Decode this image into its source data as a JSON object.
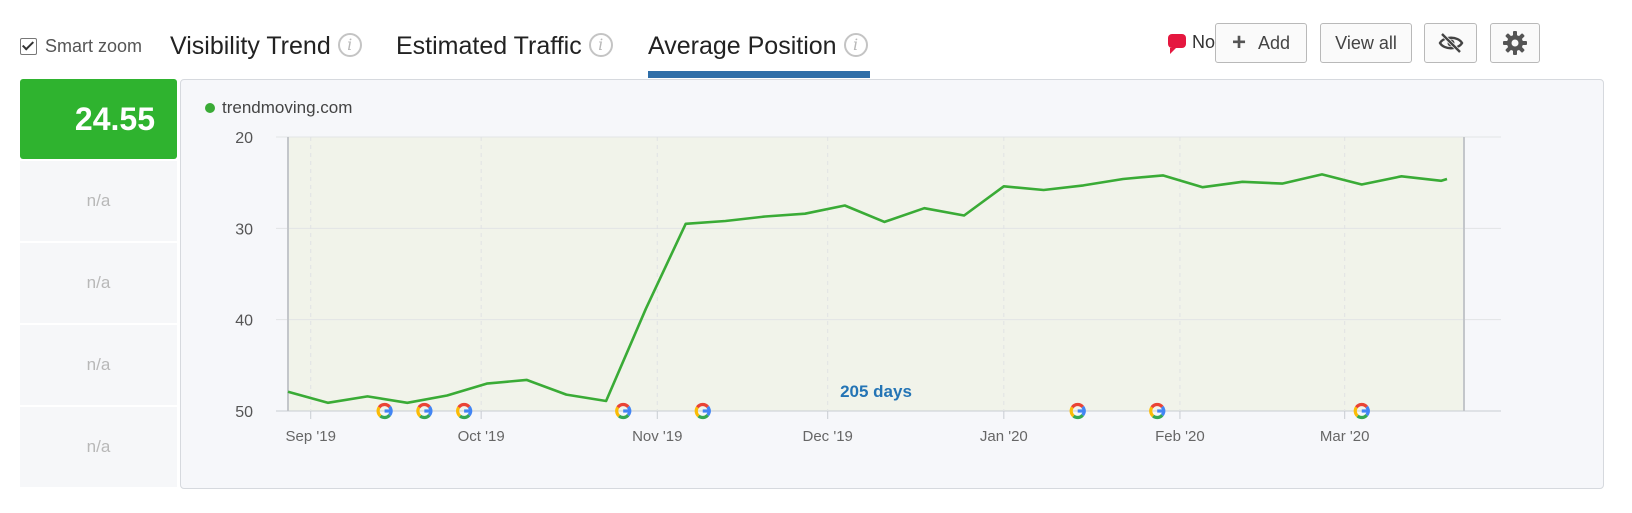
{
  "controls": {
    "smart_zoom_label": "Smart zoom",
    "smart_zoom_checked": true
  },
  "tabs": [
    {
      "label": "Visibility Trend",
      "active": false
    },
    {
      "label": "Estimated Traffic",
      "active": false
    },
    {
      "label": "Average Position",
      "active": true
    }
  ],
  "notes": {
    "label": "Notes:",
    "add_label": "Add",
    "view_all_label": "View all"
  },
  "icons": {
    "info": "info-icon",
    "note": "speech-bubble-icon",
    "plus": "plus-icon",
    "hide": "eye-slash-icon",
    "settings": "gear-icon",
    "update": "google-g-icon"
  },
  "metrics": {
    "value": "24.55",
    "na": [
      "n/a",
      "n/a",
      "n/a",
      "n/a"
    ]
  },
  "colors": {
    "accent": "#2f6ea8",
    "line": "#3aab36",
    "score_bg": "#2fb32f",
    "period_label": "#2474b5"
  },
  "chart_data": {
    "type": "line",
    "legend_entry": "trendmoving.com",
    "y_reversed": true,
    "ylim": [
      20,
      50
    ],
    "yticks": [
      20,
      30,
      40,
      50
    ],
    "xlim": [
      "2019-08-28",
      "2020-03-22"
    ],
    "xticks": [
      {
        "date": "2019-09-01",
        "label": "Sep '19"
      },
      {
        "date": "2019-10-01",
        "label": "Oct '19"
      },
      {
        "date": "2019-11-01",
        "label": "Nov '19"
      },
      {
        "date": "2019-12-01",
        "label": "Dec '19"
      },
      {
        "date": "2020-01-01",
        "label": "Jan '20"
      },
      {
        "date": "2020-02-01",
        "label": "Feb '20"
      },
      {
        "date": "2020-03-01",
        "label": "Mar '20"
      }
    ],
    "series": [
      {
        "name": "trendmoving.com",
        "points": [
          [
            "2019-08-28",
            47.9
          ],
          [
            "2019-09-04",
            49.1
          ],
          [
            "2019-09-11",
            48.4
          ],
          [
            "2019-09-18",
            49.1
          ],
          [
            "2019-09-25",
            48.3
          ],
          [
            "2019-10-02",
            47.0
          ],
          [
            "2019-10-09",
            46.6
          ],
          [
            "2019-10-16",
            48.2
          ],
          [
            "2019-10-23",
            48.9
          ],
          [
            "2019-10-30",
            38.8
          ],
          [
            "2019-11-06",
            29.5
          ],
          [
            "2019-11-13",
            29.2
          ],
          [
            "2019-11-20",
            28.7
          ],
          [
            "2019-11-27",
            28.4
          ],
          [
            "2019-12-04",
            27.5
          ],
          [
            "2019-12-11",
            29.3
          ],
          [
            "2019-12-18",
            27.8
          ],
          [
            "2019-12-25",
            28.6
          ],
          [
            "2020-01-01",
            25.4
          ],
          [
            "2020-01-08",
            25.8
          ],
          [
            "2020-01-15",
            25.3
          ],
          [
            "2020-01-22",
            24.6
          ],
          [
            "2020-01-29",
            24.2
          ],
          [
            "2020-02-05",
            25.5
          ],
          [
            "2020-02-12",
            24.9
          ],
          [
            "2020-02-19",
            25.1
          ],
          [
            "2020-02-26",
            24.1
          ],
          [
            "2020-03-04",
            25.2
          ],
          [
            "2020-03-11",
            24.3
          ],
          [
            "2020-03-18",
            24.8
          ],
          [
            "2020-03-19",
            24.6
          ]
        ]
      }
    ],
    "annotation": "205 days",
    "update_markers": [
      "2019-09-14",
      "2019-09-21",
      "2019-09-28",
      "2019-10-26",
      "2019-11-09",
      "2020-01-14",
      "2020-01-28",
      "2020-03-04"
    ],
    "grid": true,
    "legend_position": "top-left"
  }
}
